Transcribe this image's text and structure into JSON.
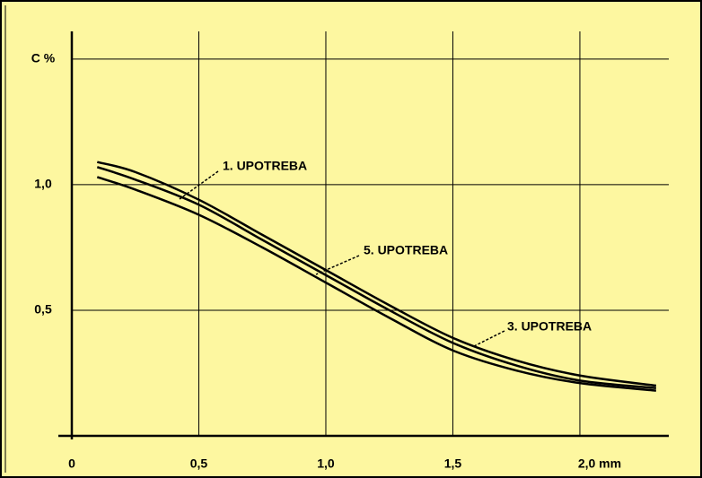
{
  "chart_data": {
    "type": "line",
    "xlim": [
      0,
      2.35
    ],
    "ylim": [
      0,
      1.61
    ],
    "xticks": [
      0,
      {
        "value": 0.5,
        "label": "0,5"
      },
      {
        "value": 1,
        "label": "1,0"
      },
      {
        "value": 1.5,
        "label": "1,5"
      },
      {
        "value": 2,
        "label": "2,0 mm"
      }
    ],
    "yticks": [
      {
        "value": 0.5,
        "label": "0,5"
      },
      {
        "value": 1,
        "label": "1,0"
      },
      {
        "value": 1.5,
        "label": "C %"
      }
    ],
    "grid": true,
    "x": [
      0.1,
      0.25,
      0.5,
      0.75,
      1.0,
      1.25,
      1.5,
      1.75,
      2.0,
      2.3
    ],
    "series": [
      {
        "name": "1. UPOTREBA",
        "color": "#000000",
        "values": [
          1.09,
          1.05,
          0.94,
          0.8,
          0.66,
          0.52,
          0.39,
          0.3,
          0.24,
          0.2
        ]
      },
      {
        "name": "5. UPOTREBA",
        "color": "#000000",
        "values": [
          1.07,
          1.02,
          0.92,
          0.78,
          0.64,
          0.5,
          0.37,
          0.28,
          0.22,
          0.19
        ]
      },
      {
        "name": "3. UPOTREBA",
        "color": "#000000",
        "values": [
          1.03,
          0.98,
          0.88,
          0.75,
          0.61,
          0.47,
          0.34,
          0.26,
          0.21,
          0.18
        ]
      }
    ]
  }
}
